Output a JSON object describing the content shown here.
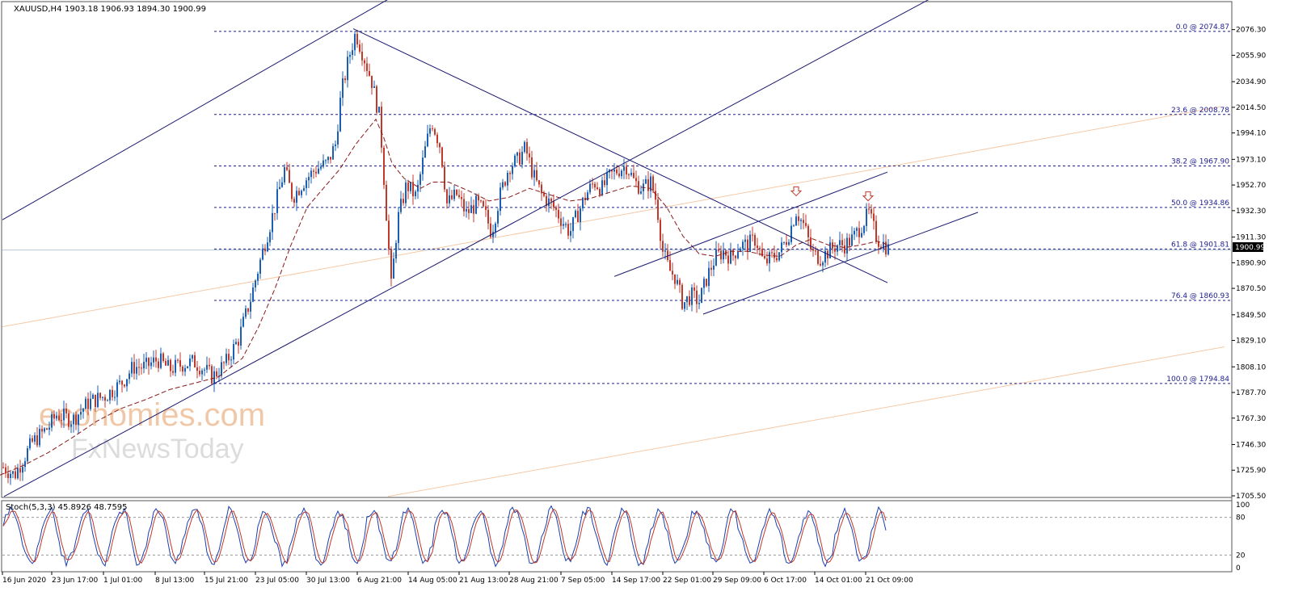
{
  "header": {
    "symbol": "XAUUSD,H4",
    "ohlc": "1903.18 1906.93 1894.30 1900.99"
  },
  "watermark": {
    "line1": "economies.com",
    "line2": "FxNewsToday"
  },
  "stoch": {
    "label": "Stoch(5,3,3) 45.8926 48.7595",
    "ticks": [
      "100",
      "80",
      "20",
      "0"
    ]
  },
  "colors": {
    "bull": "#1a5fb4",
    "bear": "#c0392b",
    "trend": "#191970",
    "fib": "#1c1c8c",
    "ma": "#8b1a1a",
    "channel": "#f5c9a6"
  },
  "chart_data": [
    {
      "type": "candlestick",
      "ylim": [
        1705.5,
        2087.0
      ],
      "yticks": [
        "2076.30",
        "2055.90",
        "2034.90",
        "2014.50",
        "1994.10",
        "1973.10",
        "1952.70",
        "1932.30",
        "1911.30",
        "1890.90",
        "1870.50",
        "1849.50",
        "1829.10",
        "1808.10",
        "1787.70",
        "1767.30",
        "1746.30",
        "1725.90",
        "1705.50"
      ],
      "xticks": [
        "16 Jun 2020",
        "23 Jun 17:00",
        "1 Jul 01:00",
        "8 Jul 13:00",
        "15 Jul 21:00",
        "23 Jul 05:00",
        "30 Jul 13:00",
        "6 Aug 21:00",
        "14 Aug 05:00",
        "21 Aug 13:00",
        "28 Aug 21:00",
        "7 Sep 05:00",
        "14 Sep 17:00",
        "22 Sep 01:00",
        "29 Sep 09:00",
        "6 Oct 17:00",
        "14 Oct 01:00",
        "21 Oct 09:00"
      ],
      "current_price": "1900.99",
      "fib_levels": [
        {
          "label": "0.0 @ 2074.87",
          "value": 2074.87
        },
        {
          "label": "23.6 @ 2008.78",
          "value": 2008.78
        },
        {
          "label": "38.2 @ 1967.90",
          "value": 1967.9
        },
        {
          "label": "50.0 @ 1934.86",
          "value": 1934.86
        },
        {
          "label": "61.8 @ 1901.81",
          "value": 1901.81
        },
        {
          "label": "76.4 @ 1860.93",
          "value": 1860.93
        },
        {
          "label": "100.0 @ 1794.84",
          "value": 1794.84
        }
      ],
      "path": [
        [
          0,
          1730
        ],
        [
          18,
          1722
        ],
        [
          40,
          1748
        ],
        [
          60,
          1760
        ],
        [
          70,
          1770
        ],
        [
          90,
          1766
        ],
        [
          110,
          1780
        ],
        [
          130,
          1785
        ],
        [
          150,
          1795
        ],
        [
          165,
          1808
        ],
        [
          180,
          1808
        ],
        [
          195,
          1814
        ],
        [
          210,
          1806
        ],
        [
          225,
          1810
        ],
        [
          240,
          1812
        ],
        [
          253,
          1806
        ],
        [
          263,
          1800
        ],
        [
          280,
          1812
        ],
        [
          295,
          1830
        ],
        [
          310,
          1862
        ],
        [
          325,
          1900
        ],
        [
          340,
          1935
        ],
        [
          352,
          1965
        ],
        [
          362,
          1943
        ],
        [
          375,
          1955
        ],
        [
          390,
          1965
        ],
        [
          405,
          1970
        ],
        [
          415,
          1985
        ],
        [
          422,
          2025
        ],
        [
          432,
          2055
        ],
        [
          440,
          2074
        ],
        [
          450,
          2055
        ],
        [
          460,
          2035
        ],
        [
          470,
          2005
        ],
        [
          478,
          1930
        ],
        [
          484,
          1872
        ],
        [
          492,
          1925
        ],
        [
          503,
          1953
        ],
        [
          515,
          1943
        ],
        [
          525,
          1978
        ],
        [
          534,
          2004
        ],
        [
          545,
          1983
        ],
        [
          553,
          1938
        ],
        [
          565,
          1945
        ],
        [
          577,
          1930
        ],
        [
          590,
          1938
        ],
        [
          600,
          1930
        ],
        [
          608,
          1915
        ],
        [
          618,
          1943
        ],
        [
          630,
          1968
        ],
        [
          640,
          1972
        ],
        [
          650,
          1982
        ],
        [
          660,
          1960
        ],
        [
          670,
          1945
        ],
        [
          685,
          1935
        ],
        [
          695,
          1925
        ],
        [
          705,
          1915
        ],
        [
          715,
          1930
        ],
        [
          725,
          1945
        ],
        [
          735,
          1955
        ],
        [
          745,
          1950
        ],
        [
          755,
          1960
        ],
        [
          765,
          1965
        ],
        [
          775,
          1968
        ],
        [
          785,
          1955
        ],
        [
          795,
          1950
        ],
        [
          805,
          1955
        ],
        [
          812,
          1940
        ],
        [
          820,
          1900
        ],
        [
          828,
          1885
        ],
        [
          835,
          1880
        ],
        [
          845,
          1858
        ],
        [
          855,
          1865
        ],
        [
          865,
          1860
        ],
        [
          875,
          1880
        ],
        [
          885,
          1895
        ],
        [
          895,
          1900
        ],
        [
          905,
          1895
        ],
        [
          915,
          1905
        ],
        [
          925,
          1905
        ],
        [
          935,
          1910
        ],
        [
          945,
          1890
        ],
        [
          955,
          1895
        ],
        [
          965,
          1900
        ],
        [
          975,
          1912
        ],
        [
          985,
          1932
        ],
        [
          995,
          1920
        ],
        [
          1005,
          1898
        ],
        [
          1015,
          1895
        ],
        [
          1025,
          1900
        ],
        [
          1035,
          1905
        ],
        [
          1045,
          1905
        ],
        [
          1055,
          1910
        ],
        [
          1065,
          1920
        ],
        [
          1075,
          1930
        ],
        [
          1085,
          1910
        ],
        [
          1095,
          1905
        ],
        [
          1100,
          1901
        ]
      ],
      "ma": [
        [
          0,
          1722
        ],
        [
          30,
          1730
        ],
        [
          60,
          1740
        ],
        [
          90,
          1752
        ],
        [
          120,
          1765
        ],
        [
          150,
          1775
        ],
        [
          180,
          1782
        ],
        [
          210,
          1790
        ],
        [
          240,
          1795
        ],
        [
          270,
          1800
        ],
        [
          300,
          1815
        ],
        [
          320,
          1840
        ],
        [
          340,
          1870
        ],
        [
          360,
          1905
        ],
        [
          380,
          1935
        ],
        [
          400,
          1950
        ],
        [
          420,
          1965
        ],
        [
          440,
          1985
        ],
        [
          465,
          2005
        ],
        [
          475,
          1990
        ],
        [
          485,
          1970
        ],
        [
          500,
          1958
        ],
        [
          520,
          1950
        ],
        [
          535,
          1955
        ],
        [
          555,
          1955
        ],
        [
          580,
          1948
        ],
        [
          605,
          1940
        ],
        [
          630,
          1943
        ],
        [
          655,
          1950
        ],
        [
          680,
          1945
        ],
        [
          705,
          1940
        ],
        [
          730,
          1942
        ],
        [
          755,
          1947
        ],
        [
          780,
          1952
        ],
        [
          805,
          1950
        ],
        [
          825,
          1935
        ],
        [
          845,
          1912
        ],
        [
          865,
          1898
        ],
        [
          885,
          1896
        ],
        [
          905,
          1900
        ],
        [
          925,
          1900
        ],
        [
          945,
          1897
        ],
        [
          965,
          1896
        ],
        [
          985,
          1905
        ],
        [
          1005,
          1910
        ],
        [
          1025,
          1905
        ],
        [
          1045,
          1903
        ],
        [
          1065,
          1905
        ],
        [
          1085,
          1908
        ],
        [
          1100,
          1905
        ]
      ],
      "trendlines": [
        {
          "x1": 3,
          "y1": 1925,
          "x2": 490,
          "y2": 2104
        },
        {
          "x1": 5,
          "y1": 1705,
          "x2": 1160,
          "y2": 2104
        },
        {
          "x1": 437,
          "y1": 2077,
          "x2": 1098,
          "y2": 1875
        },
        {
          "x1": 760,
          "y1": 1880,
          "x2": 1098,
          "y2": 1963
        },
        {
          "x1": 870,
          "y1": 1850,
          "x2": 1210,
          "y2": 1931
        }
      ],
      "channel_lines": [
        {
          "x1": 3,
          "y1": 1840,
          "x2": 1510,
          "y2": 2015
        },
        {
          "x1": 480,
          "y1": 1705,
          "x2": 1515,
          "y2": 1824
        }
      ],
      "arrows": [
        [
          985,
          1948
        ],
        [
          1074,
          1944
        ]
      ]
    },
    {
      "type": "line",
      "ylim": [
        0,
        100
      ],
      "levels": [
        80,
        20
      ],
      "series": [
        {
          "key": "main"
        },
        {
          "key": "signal"
        }
      ]
    }
  ]
}
